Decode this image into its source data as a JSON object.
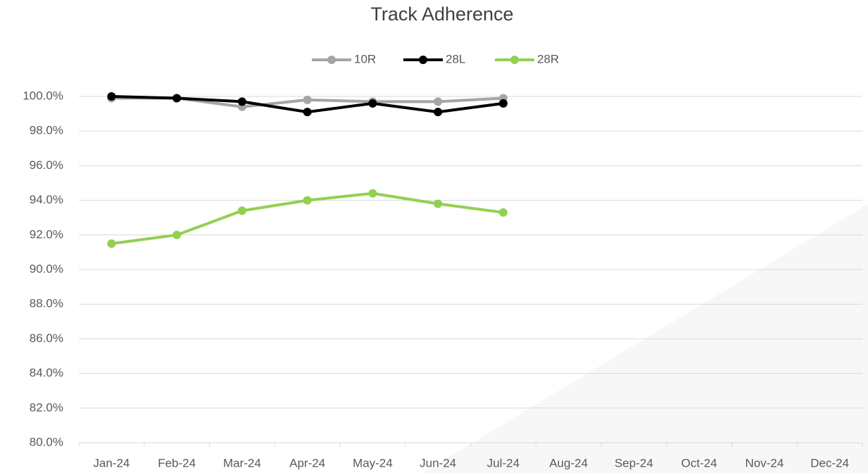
{
  "chart_data": {
    "type": "line",
    "title": "Track Adherence",
    "categories": [
      "Jan-24",
      "Feb-24",
      "Mar-24",
      "Apr-24",
      "May-24",
      "Jun-24",
      "Jul-24",
      "Aug-24",
      "Sep-24",
      "Oct-24",
      "Nov-24",
      "Dec-24"
    ],
    "series": [
      {
        "name": "10R",
        "color": "#a5a5a5",
        "values": [
          99.9,
          99.9,
          99.4,
          99.8,
          99.7,
          99.7,
          99.9,
          null,
          null,
          null,
          null,
          null
        ]
      },
      {
        "name": "28L",
        "color": "#000000",
        "values": [
          100.0,
          99.9,
          99.7,
          99.1,
          99.6,
          99.1,
          99.6,
          null,
          null,
          null,
          null,
          null
        ]
      },
      {
        "name": "28R",
        "color": "#92d050",
        "values": [
          91.5,
          92.0,
          93.4,
          94.0,
          94.4,
          93.8,
          93.3,
          null,
          null,
          null,
          null,
          null
        ]
      }
    ],
    "ylim": [
      80,
      100
    ],
    "yticks": [
      {
        "value": 80,
        "label": "80.0%"
      },
      {
        "value": 82,
        "label": "82.0%"
      },
      {
        "value": 84,
        "label": "84.0%"
      },
      {
        "value": 86,
        "label": "86.0%"
      },
      {
        "value": 88,
        "label": "88.0%"
      },
      {
        "value": 90,
        "label": "90.0%"
      },
      {
        "value": 92,
        "label": "92.0%"
      },
      {
        "value": 94,
        "label": "94.0%"
      },
      {
        "value": 96,
        "label": "96.0%"
      },
      {
        "value": 98,
        "label": "98.0%"
      },
      {
        "value": 100,
        "label": "100.0%"
      }
    ],
    "grid": true,
    "legend": "top"
  }
}
